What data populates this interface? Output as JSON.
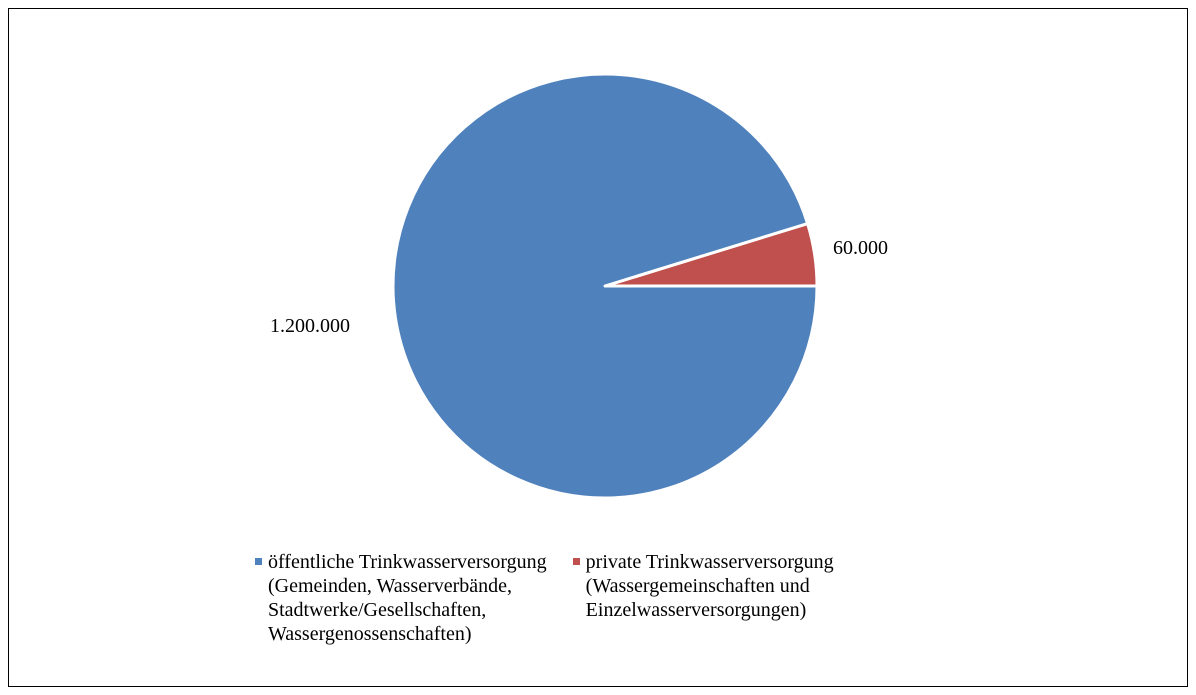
{
  "chart_data": {
    "type": "pie",
    "start_angle_deg": 0,
    "direction": "counterclockwise",
    "slices": [
      {
        "name": "öffentliche Trinkwasserversorgung\n(Gemeinden, Wasserverbände,\nStadtwerke/Gesellschaften,\nWassergenossenschaften)",
        "value": 1200000,
        "label": "1.200.000",
        "color": "#4F81BD"
      },
      {
        "name": "private Trinkwasserversorgung\n(Wassergemeinschaften und\nEinzelwasserversorgungen)",
        "value": 60000,
        "label": "60.000",
        "color": "#C0504D"
      }
    ],
    "legend_position": "bottom"
  }
}
